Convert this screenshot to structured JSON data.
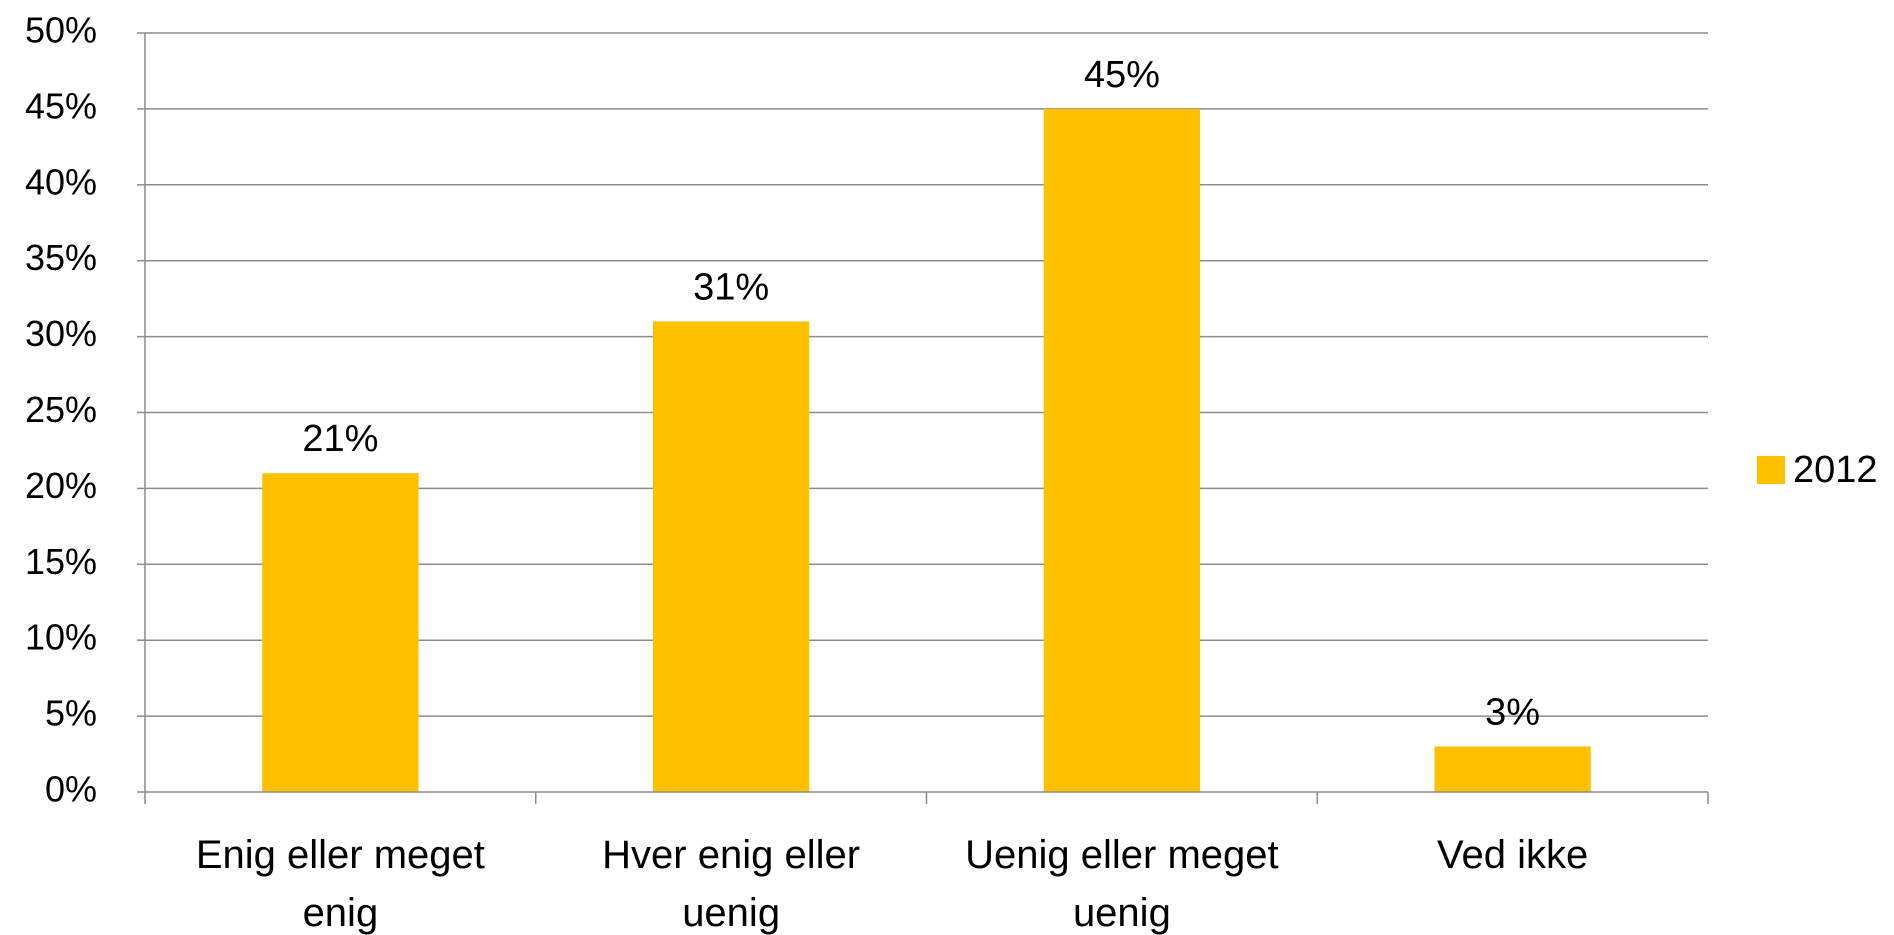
{
  "chart_data": {
    "type": "bar",
    "categories": [
      [
        "Enig eller meget",
        "enig"
      ],
      [
        "Hver enig eller",
        "uenig"
      ],
      [
        "Uenig eller meget",
        "uenig"
      ],
      [
        "Ved ikke"
      ]
    ],
    "series": [
      {
        "name": "2012",
        "color": "#FFC000",
        "values": [
          21,
          31,
          45,
          3
        ],
        "data_labels": [
          "21%",
          "31%",
          "45%",
          "3%"
        ]
      }
    ],
    "ylim": [
      0,
      50
    ],
    "y_ticks": [
      0,
      5,
      10,
      15,
      20,
      25,
      30,
      35,
      40,
      45,
      50
    ],
    "y_tick_labels": [
      "0%",
      "5%",
      "10%",
      "15%",
      "20%",
      "25%",
      "30%",
      "35%",
      "40%",
      "45%",
      "50%"
    ],
    "title": "",
    "xlabel": "",
    "ylabel": "",
    "grid": true,
    "legend": {
      "position": "right"
    }
  }
}
